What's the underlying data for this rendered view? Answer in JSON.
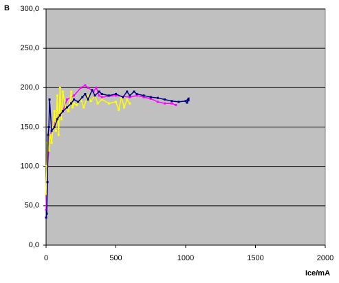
{
  "chart_data": {
    "type": "line",
    "title": "B",
    "x_label": "Ice/mA",
    "xlim": [
      0,
      2000
    ],
    "xticks": [
      0,
      500,
      1000,
      1500,
      2000
    ],
    "ylim": [
      0,
      300
    ],
    "yticks": [
      {
        "value": 0,
        "label": "0,0"
      },
      {
        "value": 50,
        "label": "50,0"
      },
      {
        "value": 100,
        "label": "100,0"
      },
      {
        "value": 150,
        "label": "150,0"
      },
      {
        "value": 200,
        "label": "200,0"
      },
      {
        "value": 250,
        "label": "250,0"
      },
      {
        "value": 300,
        "label": "300,0"
      }
    ],
    "grid": true,
    "series": [
      {
        "color": "#ff00ff",
        "x": [
          0,
          10,
          30,
          60,
          90,
          120,
          150,
          200,
          250,
          280,
          300,
          340,
          360,
          380,
          400,
          500,
          600,
          650,
          700,
          750,
          800,
          850,
          900,
          930
        ],
        "values": [
          45,
          100,
          140,
          155,
          165,
          170,
          185,
          190,
          200,
          203,
          200,
          195,
          200,
          190,
          188,
          190,
          188,
          190,
          188,
          186,
          182,
          180,
          180,
          178
        ]
      },
      {
        "color": "#ffff00",
        "x": [
          0,
          5,
          10,
          20,
          30,
          40,
          50,
          60,
          70,
          80,
          90,
          100,
          110,
          120,
          140,
          160,
          180,
          190,
          200,
          220,
          250,
          270,
          300,
          320,
          350,
          370,
          400,
          450,
          500,
          520,
          540,
          560,
          580,
          600
        ],
        "values": [
          65,
          100,
          130,
          120,
          140,
          130,
          150,
          170,
          145,
          190,
          140,
          200,
          160,
          195,
          175,
          170,
          195,
          175,
          180,
          178,
          185,
          175,
          190,
          183,
          190,
          180,
          185,
          180,
          182,
          172,
          188,
          175,
          185,
          180
        ]
      },
      {
        "color": "#000080",
        "x": [
          0,
          5,
          10,
          15,
          20,
          25,
          40,
          60,
          80,
          100,
          120,
          150,
          180,
          200,
          230,
          260,
          280,
          300,
          330,
          350,
          380,
          400,
          450,
          500,
          550,
          580,
          600,
          630,
          650,
          700,
          750,
          800,
          850,
          900,
          950,
          1000,
          1020,
          1010,
          1020
        ],
        "values": [
          35,
          40,
          80,
          140,
          150,
          185,
          145,
          150,
          160,
          165,
          170,
          175,
          180,
          185,
          182,
          188,
          192,
          185,
          197,
          190,
          195,
          192,
          190,
          192,
          188,
          195,
          190,
          195,
          192,
          190,
          188,
          187,
          185,
          183,
          182,
          183,
          186,
          181,
          184
        ]
      }
    ]
  }
}
